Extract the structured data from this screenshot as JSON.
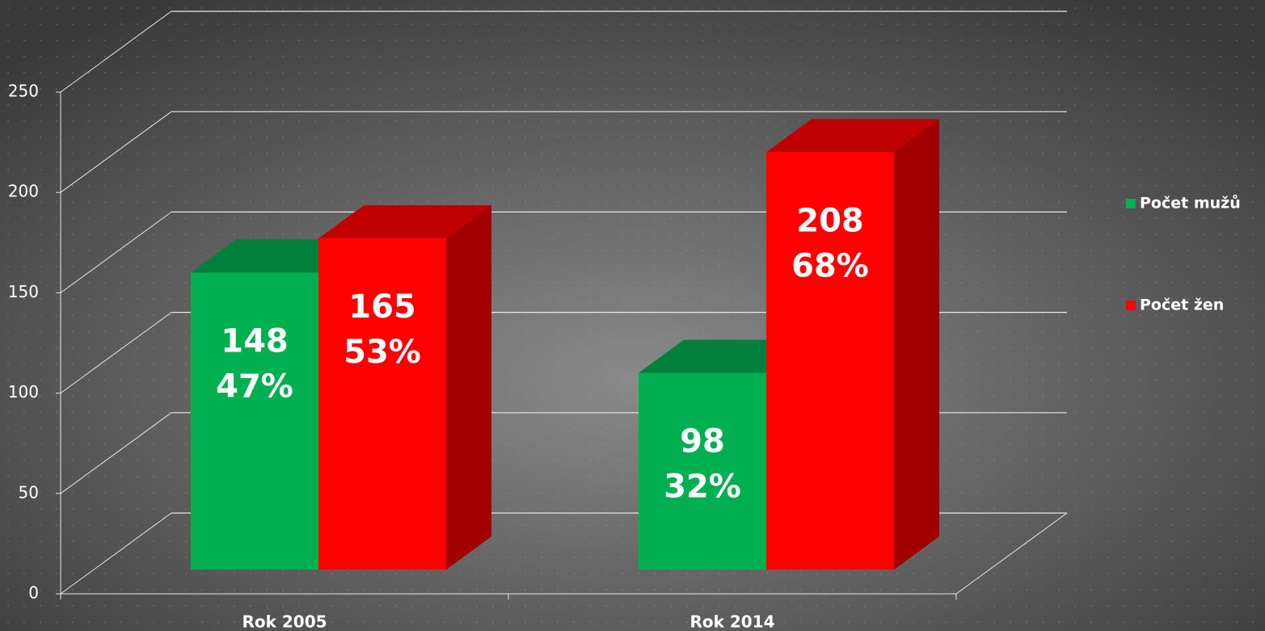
{
  "chart_data": {
    "type": "bar3d",
    "categories": [
      "Rok  2005",
      "Rok 2014"
    ],
    "series": [
      {
        "name": "Počet mužů",
        "color": "#00b050",
        "top_color": "#00803a",
        "side_color": "#006a2e",
        "values": [
          148,
          98
        ],
        "share_labels": [
          "47%",
          "32%"
        ]
      },
      {
        "name": "Počet žen",
        "color": "#ff0000",
        "top_color": "#c00000",
        "side_color": "#a00000",
        "values": [
          165,
          208
        ],
        "share_labels": [
          "53%",
          "68%"
        ]
      }
    ],
    "ylim": [
      0,
      250
    ],
    "yticks": [
      0,
      50,
      100,
      150,
      200,
      250
    ],
    "grid": true,
    "legend": "right"
  }
}
